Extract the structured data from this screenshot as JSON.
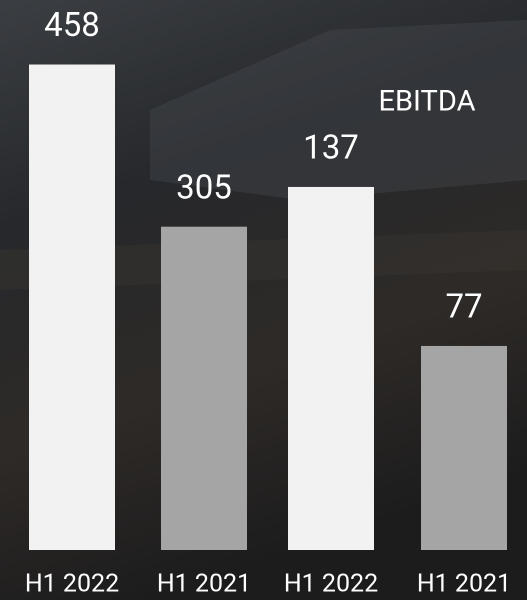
{
  "chart_data": [
    {
      "type": "bar",
      "categories": [
        "H1 2022",
        "H1 2021"
      ],
      "values": [
        458,
        305
      ],
      "colors": [
        "#f2f2f2",
        "#a5a5a5"
      ],
      "ylim": [
        0,
        500
      ]
    },
    {
      "type": "bar",
      "title": "EBITDA",
      "categories": [
        "H1 2022",
        "H1 2021"
      ],
      "values": [
        137,
        77
      ],
      "colors": [
        "#f2f2f2",
        "#a5a5a5"
      ],
      "ylim": [
        0,
        200
      ]
    }
  ]
}
